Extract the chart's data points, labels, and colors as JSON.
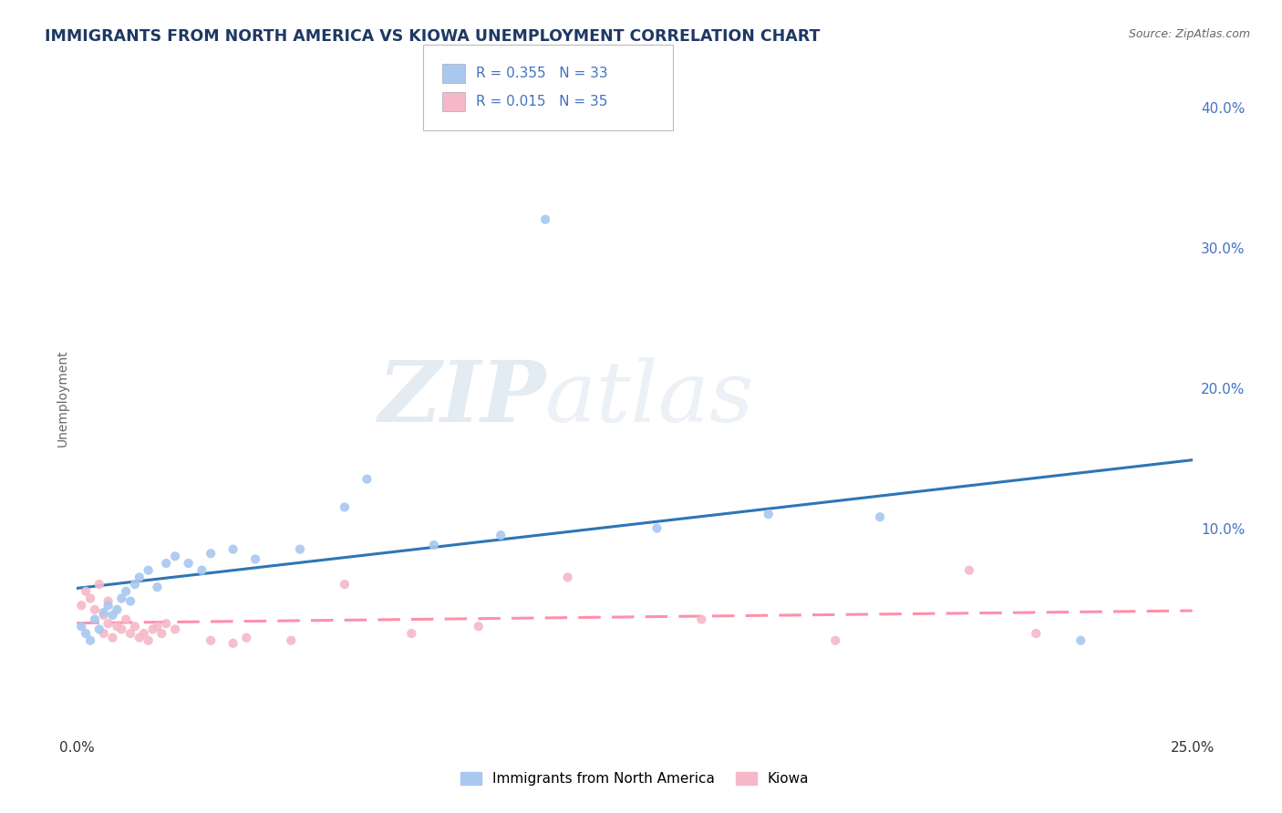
{
  "title": "IMMIGRANTS FROM NORTH AMERICA VS KIOWA UNEMPLOYMENT CORRELATION CHART",
  "source_text": "Source: ZipAtlas.com",
  "ylabel": "Unemployment",
  "xlim": [
    0.0,
    0.25
  ],
  "ylim": [
    -0.045,
    0.43
  ],
  "yticks_right": [
    0.1,
    0.2,
    0.3,
    0.4
  ],
  "yticklabels_right": [
    "10.0%",
    "20.0%",
    "30.0%",
    "40.0%"
  ],
  "r_blue": 0.355,
  "n_blue": 33,
  "r_pink": 0.015,
  "n_pink": 35,
  "blue_color": "#A8C8F0",
  "pink_color": "#F5B8C8",
  "blue_line_color": "#2E75B6",
  "pink_line_color": "#FF8FAB",
  "watermark_zip": "ZIP",
  "watermark_atlas": "atlas",
  "background_color": "#FFFFFF",
  "grid_color": "#CCCCCC",
  "title_color": "#1F3864",
  "source_color": "#666666",
  "ylabel_color": "#666666",
  "tick_color": "#333333",
  "right_tick_color": "#4472C4",
  "blue_scatter_x": [
    0.001,
    0.002,
    0.003,
    0.004,
    0.005,
    0.006,
    0.007,
    0.008,
    0.009,
    0.01,
    0.011,
    0.012,
    0.013,
    0.014,
    0.016,
    0.018,
    0.02,
    0.022,
    0.025,
    0.028,
    0.03,
    0.035,
    0.04,
    0.05,
    0.06,
    0.065,
    0.08,
    0.095,
    0.105,
    0.13,
    0.155,
    0.18,
    0.225
  ],
  "blue_scatter_y": [
    0.03,
    0.025,
    0.02,
    0.035,
    0.028,
    0.04,
    0.045,
    0.038,
    0.042,
    0.05,
    0.055,
    0.048,
    0.06,
    0.065,
    0.07,
    0.058,
    0.075,
    0.08,
    0.075,
    0.07,
    0.082,
    0.085,
    0.078,
    0.085,
    0.115,
    0.135,
    0.088,
    0.095,
    0.32,
    0.1,
    0.11,
    0.108,
    0.02
  ],
  "pink_scatter_x": [
    0.001,
    0.002,
    0.003,
    0.004,
    0.005,
    0.006,
    0.006,
    0.007,
    0.007,
    0.008,
    0.009,
    0.01,
    0.011,
    0.012,
    0.013,
    0.014,
    0.015,
    0.016,
    0.017,
    0.018,
    0.019,
    0.02,
    0.022,
    0.03,
    0.035,
    0.038,
    0.048,
    0.06,
    0.075,
    0.09,
    0.11,
    0.14,
    0.17,
    0.2,
    0.215
  ],
  "pink_scatter_y": [
    0.045,
    0.055,
    0.05,
    0.042,
    0.06,
    0.038,
    0.025,
    0.032,
    0.048,
    0.022,
    0.03,
    0.028,
    0.035,
    0.025,
    0.03,
    0.022,
    0.025,
    0.02,
    0.028,
    0.03,
    0.025,
    0.032,
    0.028,
    0.02,
    0.018,
    0.022,
    0.02,
    0.06,
    0.025,
    0.03,
    0.065,
    0.035,
    0.02,
    0.07,
    0.025
  ]
}
